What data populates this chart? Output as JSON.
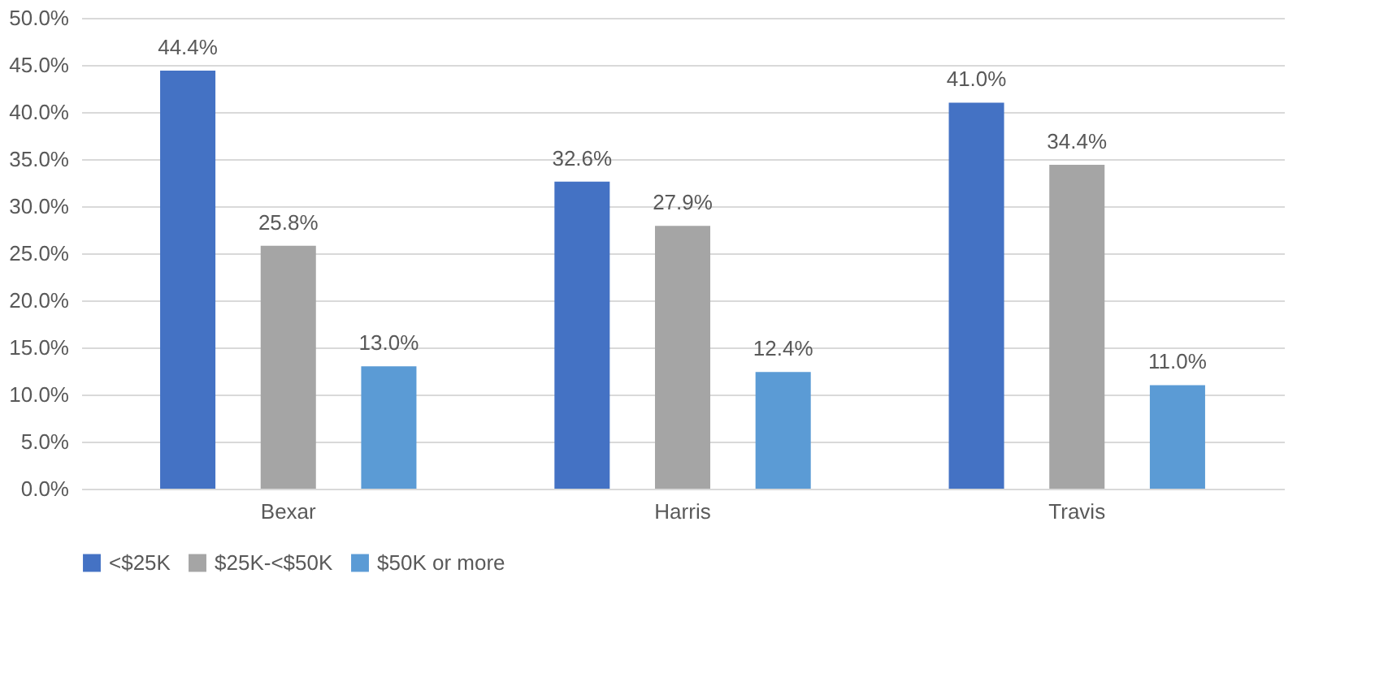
{
  "chart_data": {
    "type": "bar",
    "categories": [
      "Bexar",
      "Harris",
      "Travis"
    ],
    "series": [
      {
        "name": "<$25K",
        "color": "#4472c4",
        "values": [
          44.4,
          32.6,
          41.0
        ],
        "value_labels": [
          "44.4%",
          "32.6%",
          "41.0%"
        ]
      },
      {
        "name": "$25K-<$50K",
        "color": "#a5a5a5",
        "values": [
          25.8,
          27.9,
          34.4
        ],
        "value_labels": [
          "25.8%",
          "27.9%",
          "34.4%"
        ]
      },
      {
        "name": "$50K or more",
        "color": "#5b9bd5",
        "values": [
          13.0,
          12.4,
          11.0
        ],
        "value_labels": [
          "13.0%",
          "12.4%",
          "11.0%"
        ]
      }
    ],
    "ylim": [
      0,
      50
    ],
    "yticks": [
      {
        "value": 0,
        "label": "0.0%"
      },
      {
        "value": 5,
        "label": "5.0%"
      },
      {
        "value": 10,
        "label": "10.0%"
      },
      {
        "value": 15,
        "label": "15.0%"
      },
      {
        "value": 20,
        "label": "20.0%"
      },
      {
        "value": 25,
        "label": "25.0%"
      },
      {
        "value": 30,
        "label": "30.0%"
      },
      {
        "value": 35,
        "label": "35.0%"
      },
      {
        "value": 40,
        "label": "40.0%"
      },
      {
        "value": 45,
        "label": "45.0%"
      },
      {
        "value": 50,
        "label": "50.0%"
      }
    ],
    "grid": "y",
    "legend": "bottom"
  }
}
